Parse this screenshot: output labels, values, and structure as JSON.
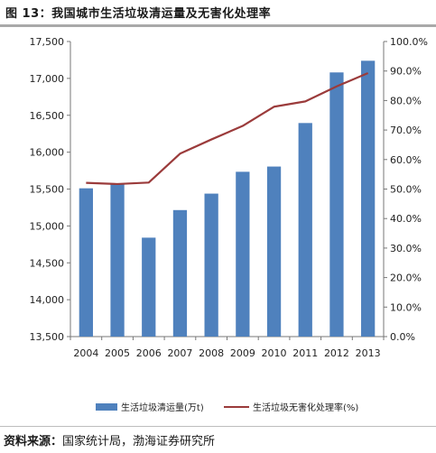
{
  "figure": {
    "title": "图 13：我国城市生活垃圾清运量及无害化处理率",
    "source_label": "资料来源：",
    "source_text": "国家统计局，渤海证券研究所"
  },
  "chart_data": {
    "type": "bar",
    "categories": [
      "2004",
      "2005",
      "2006",
      "2007",
      "2008",
      "2009",
      "2010",
      "2011",
      "2012",
      "2013"
    ],
    "series": [
      {
        "name": "生活垃圾清运量(万t)",
        "type": "bar",
        "axis": "left",
        "color": "#4F81BD",
        "values": [
          15510,
          15577,
          14841,
          15215,
          15438,
          15734,
          15805,
          16395,
          17081,
          17239
        ]
      },
      {
        "name": "生活垃圾无害化处理率(%)",
        "type": "line",
        "axis": "right",
        "color": "#9B3B3B",
        "values": [
          52.1,
          51.7,
          52.2,
          62.0,
          66.8,
          71.4,
          77.9,
          79.7,
          84.8,
          89.3
        ]
      }
    ],
    "y_left": {
      "min": 13500,
      "max": 17500,
      "step": 500,
      "ticks": [
        "13,500",
        "14,000",
        "14,500",
        "15,000",
        "15,500",
        "16,000",
        "16,500",
        "17,000",
        "17,500"
      ]
    },
    "y_right": {
      "min": 0,
      "max": 100,
      "step": 10,
      "ticks": [
        "0.0%",
        "10.0%",
        "20.0%",
        "30.0%",
        "40.0%",
        "50.0%",
        "60.0%",
        "70.0%",
        "80.0%",
        "90.0%",
        "100.0%"
      ]
    },
    "grid": false,
    "legend_position": "bottom"
  }
}
